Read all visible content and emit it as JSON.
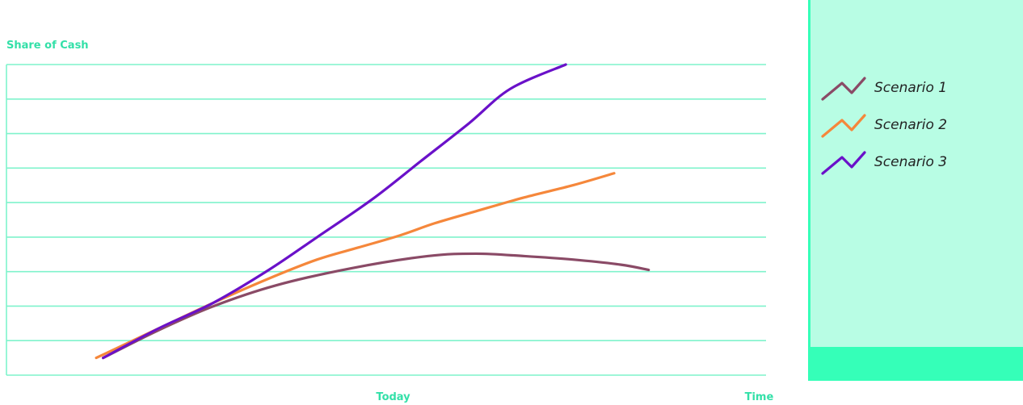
{
  "colors": {
    "grid": "#7ff3cc",
    "axis_text": "#33e0a8",
    "panel_bg": "#b8fde4",
    "panel_strip": "#35ffb8",
    "scenario1": "#8a4a66",
    "scenario2": "#f5873b",
    "scenario3": "#6a11c9"
  },
  "chart_data": {
    "type": "line",
    "title": "",
    "ylabel": "Share of Cash",
    "xlabel": "",
    "x_tick_labels": [
      {
        "text": "Today",
        "x": 5.6
      },
      {
        "text": "Time",
        "x": 10.9
      }
    ],
    "xlim": [
      0,
      11
    ],
    "ylim": [
      0,
      9
    ],
    "grid": true,
    "y_tick_labels": [],
    "legend_position": "right",
    "series": [
      {
        "name": "Scenario 1",
        "color": "#8a4a66",
        "points": [
          [
            1.4,
            0.5
          ],
          [
            2.2,
            1.3
          ],
          [
            3.0,
            2.0
          ],
          [
            3.9,
            2.6
          ],
          [
            5.0,
            3.1
          ],
          [
            6.1,
            3.45
          ],
          [
            6.8,
            3.52
          ],
          [
            7.5,
            3.45
          ],
          [
            8.2,
            3.35
          ],
          [
            8.9,
            3.2
          ],
          [
            9.3,
            3.05
          ]
        ]
      },
      {
        "name": "Scenario 2",
        "color": "#f5873b",
        "points": [
          [
            1.3,
            0.5
          ],
          [
            2.2,
            1.35
          ],
          [
            3.0,
            2.1
          ],
          [
            3.8,
            2.8
          ],
          [
            4.5,
            3.35
          ],
          [
            5.1,
            3.7
          ],
          [
            5.7,
            4.05
          ],
          [
            6.2,
            4.4
          ],
          [
            6.8,
            4.75
          ],
          [
            7.5,
            5.15
          ],
          [
            8.2,
            5.5
          ],
          [
            8.8,
            5.85
          ]
        ]
      },
      {
        "name": "Scenario 3",
        "color": "#6a11c9",
        "points": [
          [
            1.4,
            0.5
          ],
          [
            2.2,
            1.35
          ],
          [
            3.0,
            2.1
          ],
          [
            3.8,
            3.05
          ],
          [
            4.5,
            4.0
          ],
          [
            5.3,
            5.1
          ],
          [
            6.0,
            6.2
          ],
          [
            6.7,
            7.3
          ],
          [
            7.3,
            8.3
          ],
          [
            8.1,
            9.0
          ]
        ]
      }
    ]
  }
}
